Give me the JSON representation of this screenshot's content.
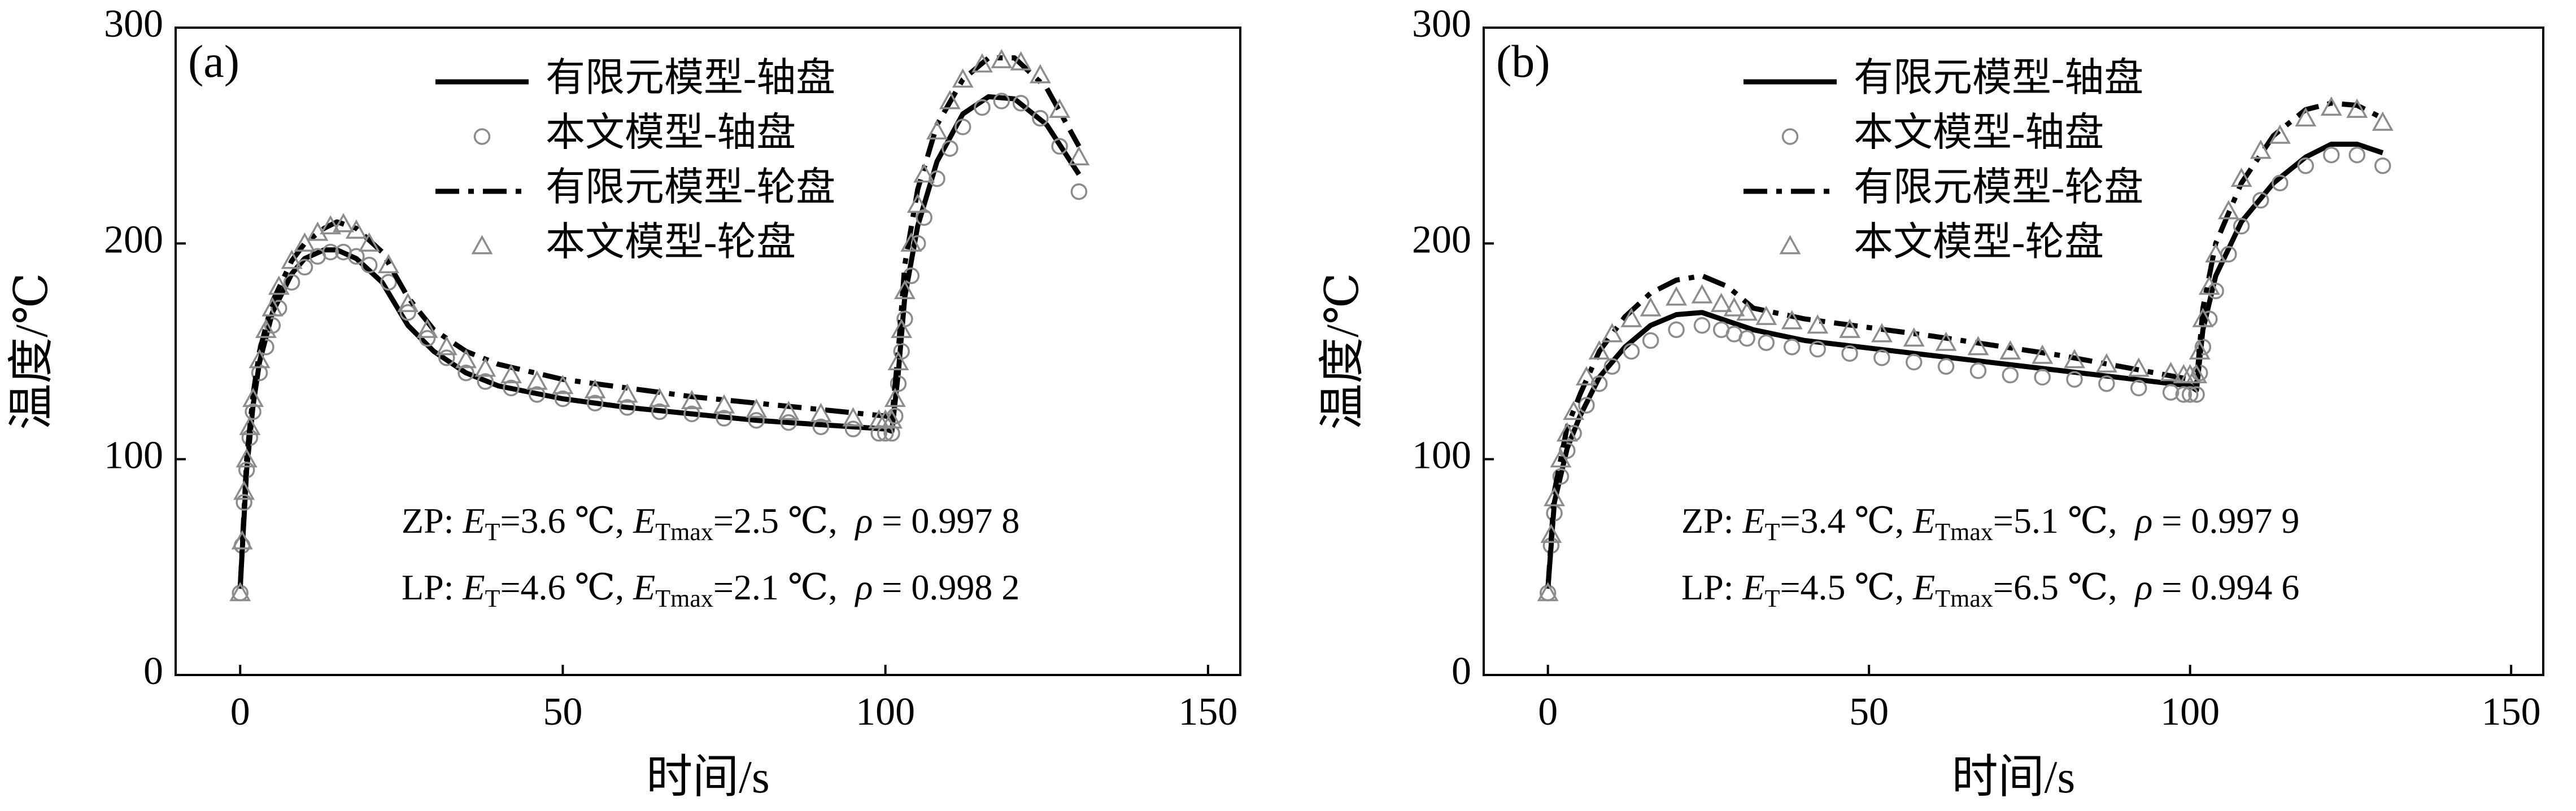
{
  "chart_data": [
    {
      "type": "line",
      "panel_label": "(a)",
      "xlabel": "时间/s",
      "ylabel": "温度/℃",
      "xlim": [
        -10,
        155
      ],
      "xticks": [
        0,
        50,
        100,
        150
      ],
      "ylim": [
        0,
        300
      ],
      "yticks": [
        0,
        100,
        200,
        300
      ],
      "series": [
        {
          "name": "有限元模型-轴盘",
          "color": "#000000",
          "style": "solid",
          "x": [
            0,
            1,
            2,
            3,
            5,
            8,
            10,
            13,
            15,
            18,
            22,
            26,
            30,
            35,
            40,
            50,
            60,
            70,
            80,
            90,
            100,
            101,
            102,
            103,
            105,
            108,
            112,
            116,
            120,
            125,
            130
          ],
          "values": [
            40,
            95,
            125,
            145,
            168,
            186,
            193,
            197,
            197,
            193,
            182,
            162,
            150,
            140,
            134,
            128,
            124,
            121,
            118,
            116,
            114,
            113,
            140,
            175,
            208,
            238,
            260,
            268,
            267,
            255,
            232
          ]
        },
        {
          "name": "本文模型-轴盘",
          "color": "#8c8c8c",
          "marker": "circle",
          "x": [
            0,
            0.3,
            0.6,
            1,
            1.5,
            2,
            3,
            4,
            5,
            6,
            8,
            10,
            12,
            14,
            16,
            18,
            20,
            23,
            26,
            29,
            32,
            35,
            38,
            42,
            46,
            50,
            55,
            60,
            65,
            70,
            75,
            80,
            85,
            90,
            95,
            99,
            100,
            101,
            101.5,
            102,
            102.5,
            103,
            104,
            105,
            106,
            108,
            110,
            112,
            115,
            118,
            121,
            124,
            127,
            130
          ],
          "values": [
            38,
            60,
            80,
            95,
            110,
            122,
            140,
            152,
            162,
            170,
            182,
            189,
            194,
            196,
            196,
            194,
            190,
            182,
            168,
            156,
            147,
            140,
            136,
            133,
            130,
            128,
            126,
            124,
            122,
            121,
            119,
            118,
            117,
            115,
            114,
            112,
            112,
            112,
            120,
            135,
            150,
            165,
            185,
            200,
            212,
            230,
            244,
            254,
            263,
            266,
            265,
            258,
            245,
            224
          ]
        },
        {
          "name": "有限元模型-轮盘",
          "color": "#000000",
          "style": "dashdot",
          "x": [
            0,
            1,
            2,
            3,
            5,
            8,
            10,
            13,
            15,
            18,
            22,
            26,
            30,
            35,
            40,
            50,
            60,
            70,
            80,
            90,
            100,
            101,
            102,
            103,
            105,
            108,
            112,
            116,
            120,
            125,
            130
          ],
          "values": [
            40,
            100,
            130,
            150,
            173,
            192,
            200,
            207,
            210,
            207,
            196,
            175,
            160,
            150,
            144,
            137,
            133,
            129,
            126,
            123,
            120,
            119,
            150,
            190,
            225,
            255,
            276,
            286,
            286,
            272,
            245
          ]
        },
        {
          "name": "本文模型-轮盘",
          "color": "#8c8c8c",
          "marker": "triangle",
          "x": [
            0,
            0.3,
            0.6,
            1,
            1.5,
            2,
            3,
            4,
            5,
            6,
            8,
            10,
            12,
            14,
            16,
            18,
            20,
            23,
            26,
            29,
            32,
            35,
            38,
            42,
            46,
            50,
            55,
            60,
            65,
            70,
            75,
            80,
            85,
            90,
            95,
            99,
            100,
            101,
            101.5,
            102,
            102.5,
            103,
            104,
            105,
            106,
            108,
            110,
            112,
            115,
            118,
            121,
            124,
            127,
            130
          ],
          "values": [
            38,
            62,
            85,
            100,
            115,
            128,
            146,
            160,
            170,
            180,
            192,
            200,
            205,
            208,
            209,
            206,
            200,
            190,
            172,
            160,
            152,
            146,
            142,
            139,
            136,
            134,
            132,
            130,
            128,
            127,
            125,
            123,
            122,
            121,
            119,
            118,
            118,
            118,
            128,
            145,
            160,
            178,
            200,
            218,
            232,
            252,
            266,
            276,
            283,
            285,
            284,
            278,
            262,
            240
          ]
        }
      ],
      "annotations": [
        [
          "ZP: ",
          "E",
          "T",
          "=3.6 ℃, ",
          "E",
          "Tmax",
          "=2.5 ℃,  ",
          "ρ",
          " = 0.997 8"
        ],
        [
          "LP: ",
          "E",
          "T",
          "=4.6 ℃, ",
          "E",
          "Tmax",
          "=2.1 ℃,  ",
          "ρ",
          " = 0.998 2"
        ]
      ]
    },
    {
      "type": "line",
      "panel_label": "(b)",
      "xlabel": "时间/s",
      "ylabel": "温度/℃",
      "xlim": [
        -10,
        155
      ],
      "xticks": [
        0,
        50,
        100,
        150
      ],
      "ylim": [
        0,
        300
      ],
      "yticks": [
        0,
        100,
        200,
        300
      ],
      "series": [
        {
          "name": "有限元模型-轴盘",
          "color": "#000000",
          "style": "solid",
          "x": [
            0,
            1,
            3,
            5,
            8,
            12,
            16,
            20,
            24,
            28,
            32,
            40,
            60,
            80,
            100,
            101,
            102,
            104,
            108,
            113,
            118,
            122,
            126,
            130
          ],
          "values": [
            40,
            80,
            105,
            120,
            138,
            152,
            162,
            167,
            168,
            164,
            160,
            155,
            148,
            141,
            134,
            132,
            160,
            185,
            210,
            228,
            240,
            246,
            246,
            242
          ]
        },
        {
          "name": "本文模型-轴盘",
          "color": "#8c8c8c",
          "marker": "circle",
          "x": [
            0,
            0.5,
            1,
            2,
            3,
            4,
            6,
            8,
            10,
            13,
            16,
            20,
            24,
            27,
            29,
            31,
            34,
            38,
            42,
            47,
            52,
            57,
            62,
            67,
            72,
            77,
            82,
            87,
            92,
            97,
            99,
            100,
            101,
            101.5,
            102,
            103,
            104,
            106,
            108,
            111,
            114,
            118,
            122,
            126,
            130
          ],
          "values": [
            38,
            60,
            75,
            92,
            104,
            112,
            125,
            135,
            143,
            150,
            155,
            160,
            162,
            160,
            158,
            156,
            154,
            152,
            151,
            149,
            147,
            145,
            143,
            141,
            139,
            138,
            137,
            135,
            133,
            131,
            130,
            130,
            130,
            140,
            152,
            165,
            178,
            195,
            208,
            220,
            228,
            236,
            241,
            241,
            236
          ]
        },
        {
          "name": "有限元模型-轮盘",
          "color": "#000000",
          "style": "dashdot",
          "x": [
            0,
            1,
            3,
            5,
            8,
            12,
            16,
            20,
            24,
            28,
            32,
            40,
            60,
            80,
            100,
            101,
            102,
            104,
            108,
            113,
            118,
            122,
            126,
            130
          ],
          "values": [
            40,
            85,
            115,
            130,
            150,
            166,
            177,
            183,
            185,
            180,
            170,
            165,
            157,
            148,
            137,
            135,
            170,
            200,
            228,
            250,
            262,
            265,
            264,
            258
          ]
        },
        {
          "name": "本文模型-轮盘",
          "color": "#8c8c8c",
          "marker": "triangle",
          "x": [
            0,
            0.5,
            1,
            2,
            3,
            4,
            6,
            8,
            10,
            13,
            16,
            20,
            24,
            27,
            29,
            31,
            34,
            38,
            42,
            47,
            52,
            57,
            62,
            67,
            72,
            77,
            82,
            87,
            92,
            97,
            99,
            100,
            101,
            101.5,
            102,
            103,
            104,
            106,
            108,
            111,
            114,
            118,
            122,
            126,
            130
          ],
          "values": [
            38,
            65,
            82,
            100,
            112,
            122,
            138,
            150,
            158,
            165,
            170,
            175,
            176,
            172,
            170,
            168,
            166,
            164,
            162,
            160,
            158,
            156,
            154,
            152,
            150,
            148,
            146,
            144,
            142,
            140,
            139,
            139,
            139,
            150,
            165,
            180,
            195,
            215,
            230,
            243,
            250,
            258,
            263,
            262,
            256
          ]
        }
      ],
      "annotations": [
        [
          "ZP: ",
          "E",
          "T",
          "=3.4 ℃, ",
          "E",
          "Tmax",
          "=5.1 ℃,  ",
          "ρ",
          " = 0.997 9"
        ],
        [
          "LP: ",
          "E",
          "T",
          "=4.5 ℃, ",
          "E",
          "Tmax",
          "=6.5 ℃,  ",
          "ρ",
          " = 0.994 6"
        ]
      ]
    }
  ]
}
